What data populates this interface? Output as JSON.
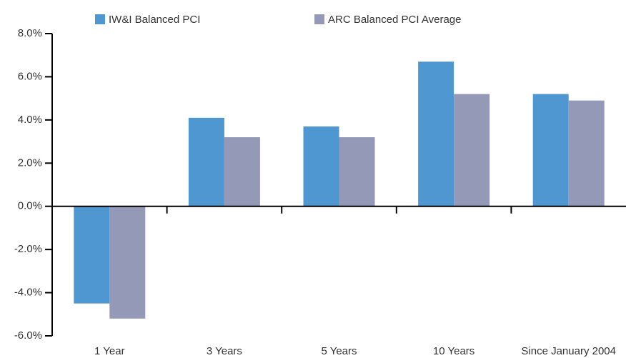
{
  "chart_data": {
    "type": "bar",
    "categories": [
      "1 Year",
      "3 Years",
      "5 Years",
      "10 Years",
      "Since January 2004"
    ],
    "series": [
      {
        "name": "IW&I Balanced PCI",
        "color": "#4f97d1",
        "values": [
          -4.5,
          4.1,
          3.7,
          6.7,
          5.2
        ]
      },
      {
        "name": "ARC Balanced PCI Average",
        "color": "#9599b8",
        "values": [
          -5.2,
          3.2,
          3.2,
          5.2,
          4.9
        ]
      }
    ],
    "ylim": [
      -6,
      8
    ],
    "yticks": [
      {
        "value": -6,
        "label": "-6.0%"
      },
      {
        "value": -4,
        "label": "-4.0%"
      },
      {
        "value": -2,
        "label": "-2.0%"
      },
      {
        "value": 0,
        "label": "0.0%"
      },
      {
        "value": 2,
        "label": "2.0%"
      },
      {
        "value": 4,
        "label": "4.0%"
      },
      {
        "value": 6,
        "label": "6.0%"
      },
      {
        "value": 8,
        "label": "8.0%"
      }
    ],
    "grid": false,
    "legend": "top"
  }
}
